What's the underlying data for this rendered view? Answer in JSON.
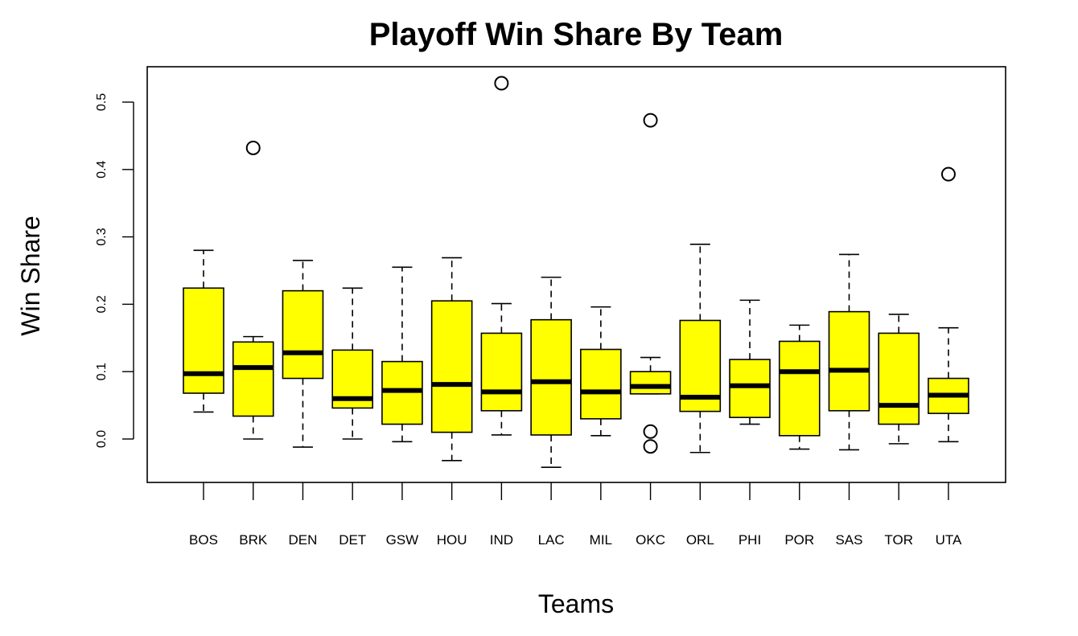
{
  "chart_data": {
    "type": "boxplot",
    "title": "Playoff Win Share By Team",
    "xlabel": "Teams",
    "ylabel": "Win Share",
    "ylim": [
      -0.065,
      0.55
    ],
    "yticks": [
      "0.0",
      "0.1",
      "0.2",
      "0.3",
      "0.4",
      "0.5"
    ],
    "ytick_values": [
      0.0,
      0.1,
      0.2,
      0.3,
      0.4,
      0.5
    ],
    "grid": false,
    "legend": "none",
    "box_color": "#ffff00",
    "median_color": "#000000",
    "outline_color": "#000000",
    "categories": [
      "BOS",
      "BRK",
      "DEN",
      "DET",
      "GSW",
      "HOU",
      "IND",
      "LAC",
      "MIL",
      "OKC",
      "ORL",
      "PHI",
      "POR",
      "SAS",
      "TOR",
      "UTA"
    ],
    "boxes": [
      {
        "team": "BOS",
        "min": 0.04,
        "q1": 0.068,
        "median": 0.097,
        "q3": 0.224,
        "max": 0.28,
        "outliers": []
      },
      {
        "team": "BRK",
        "min": 0.0,
        "q1": 0.034,
        "median": 0.106,
        "q3": 0.144,
        "max": 0.152,
        "outliers": [
          0.432
        ]
      },
      {
        "team": "DEN",
        "min": -0.012,
        "q1": 0.09,
        "median": 0.128,
        "q3": 0.22,
        "max": 0.265,
        "outliers": []
      },
      {
        "team": "DET",
        "min": 0.0,
        "q1": 0.046,
        "median": 0.06,
        "q3": 0.132,
        "max": 0.224,
        "outliers": []
      },
      {
        "team": "GSW",
        "min": -0.004,
        "q1": 0.022,
        "median": 0.072,
        "q3": 0.115,
        "max": 0.255,
        "outliers": []
      },
      {
        "team": "HOU",
        "min": -0.032,
        "q1": 0.01,
        "median": 0.081,
        "q3": 0.205,
        "max": 0.269,
        "outliers": []
      },
      {
        "team": "IND",
        "min": 0.006,
        "q1": 0.042,
        "median": 0.07,
        "q3": 0.157,
        "max": 0.201,
        "outliers": [
          0.528
        ]
      },
      {
        "team": "LAC",
        "min": -0.042,
        "q1": 0.006,
        "median": 0.085,
        "q3": 0.177,
        "max": 0.24,
        "outliers": []
      },
      {
        "team": "MIL",
        "min": 0.005,
        "q1": 0.03,
        "median": 0.07,
        "q3": 0.133,
        "max": 0.196,
        "outliers": []
      },
      {
        "team": "OKC",
        "min": 0.067,
        "q1": 0.067,
        "median": 0.078,
        "q3": 0.1,
        "max": 0.121,
        "outliers": [
          0.473,
          0.011,
          -0.011
        ]
      },
      {
        "team": "ORL",
        "min": -0.02,
        "q1": 0.041,
        "median": 0.062,
        "q3": 0.176,
        "max": 0.289,
        "outliers": []
      },
      {
        "team": "PHI",
        "min": 0.022,
        "q1": 0.032,
        "median": 0.079,
        "q3": 0.118,
        "max": 0.206,
        "outliers": []
      },
      {
        "team": "POR",
        "min": -0.015,
        "q1": 0.005,
        "median": 0.1,
        "q3": 0.145,
        "max": 0.169,
        "outliers": []
      },
      {
        "team": "SAS",
        "min": -0.016,
        "q1": 0.042,
        "median": 0.102,
        "q3": 0.189,
        "max": 0.274,
        "outliers": []
      },
      {
        "team": "TOR",
        "min": -0.007,
        "q1": 0.022,
        "median": 0.05,
        "q3": 0.157,
        "max": 0.185,
        "outliers": []
      },
      {
        "team": "UTA",
        "min": -0.004,
        "q1": 0.038,
        "median": 0.065,
        "q3": 0.09,
        "max": 0.165,
        "outliers": [
          0.393
        ]
      }
    ]
  }
}
